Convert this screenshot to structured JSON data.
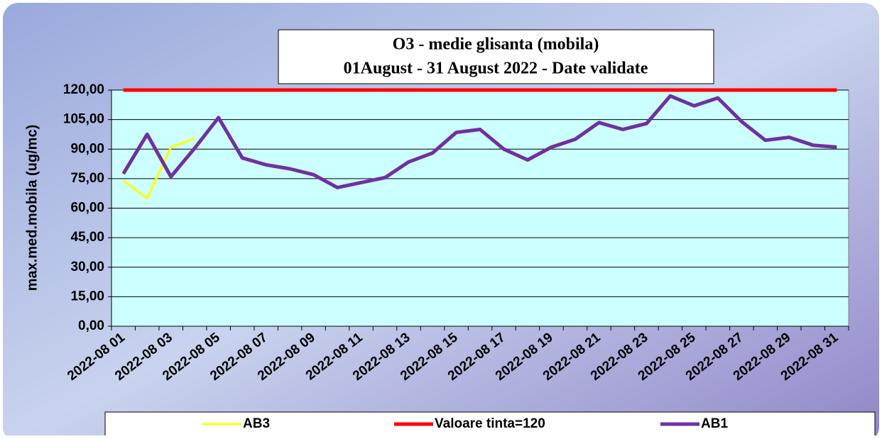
{
  "chart_data": {
    "type": "line",
    "title": "O3 - medie glisanta (mobila)",
    "subtitle": "01August - 31  August 2022 -  Date validate",
    "y_label": "max.med.mobila (ug/mc)",
    "categories": [
      "2022-08 01",
      null,
      "2022-08 03",
      null,
      "2022-08 05",
      null,
      "2022-08 07",
      null,
      "2022-08 09",
      null,
      "2022-08 11",
      null,
      "2022-08 13",
      null,
      "2022-08 15",
      null,
      "2022-08 17",
      null,
      "2022-08 19",
      null,
      "2022-08 21",
      null,
      "2022-08 23",
      null,
      "2022-08 25",
      null,
      "2022-08 27",
      null,
      "2022-08 29",
      null,
      "2022-08 31"
    ],
    "series": [
      {
        "name": "AB3",
        "color": "#ffff00",
        "values": [
          74,
          65,
          91,
          95.5,
          null,
          null,
          null,
          null,
          null,
          null,
          null,
          null,
          null,
          null,
          null,
          null,
          null,
          null,
          null,
          null,
          null,
          null,
          null,
          null,
          null,
          null,
          null,
          null,
          null,
          null,
          null
        ]
      },
      {
        "name": "Valoare tinta=120",
        "color": "#ff0000",
        "values": [
          120,
          120,
          120,
          120,
          120,
          120,
          120,
          120,
          120,
          120,
          120,
          120,
          120,
          120,
          120,
          120,
          120,
          120,
          120,
          120,
          120,
          120,
          120,
          120,
          120,
          120,
          120,
          120,
          120,
          120,
          120
        ]
      },
      {
        "name": "AB1",
        "color": "#7030a0",
        "values": [
          77.5,
          97.5,
          76,
          90.5,
          106,
          85.5,
          82,
          80,
          77,
          70.5,
          73,
          75.5,
          83.5,
          88,
          98.5,
          100,
          90,
          84.5,
          91,
          95,
          103.5,
          100,
          103,
          117,
          112,
          116,
          104,
          94.5,
          96,
          92,
          91
        ]
      }
    ],
    "ylim": [
      0,
      120
    ],
    "yticks": [
      {
        "value": 0,
        "label": "0,00"
      },
      {
        "value": 15,
        "label": "15,00"
      },
      {
        "value": 30,
        "label": "30,00"
      },
      {
        "value": 45,
        "label": "45,00"
      },
      {
        "value": 60,
        "label": "60,00"
      },
      {
        "value": 75,
        "label": "75,00"
      },
      {
        "value": 90,
        "label": "90,00"
      },
      {
        "value": 105,
        "label": "105,00"
      },
      {
        "value": 120,
        "label": "120,00"
      }
    ],
    "grid": true,
    "legend": "bottom"
  }
}
